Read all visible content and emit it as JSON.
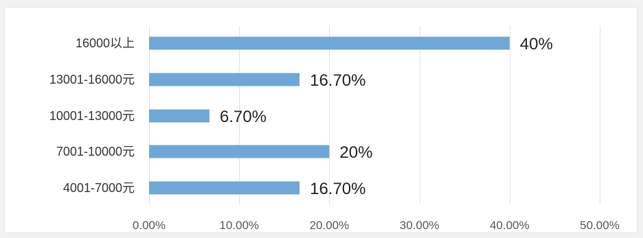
{
  "chart_data": {
    "type": "bar",
    "orientation": "horizontal",
    "categories": [
      "16000以上",
      "13001-16000元",
      "10001-13000元",
      "7001-10000元",
      "4001-7000元"
    ],
    "values": [
      40,
      16.7,
      6.7,
      20,
      16.7
    ],
    "data_labels": [
      "40%",
      "16.70%",
      "6.70%",
      "20%",
      "16.70%"
    ],
    "xlim": [
      0,
      50
    ],
    "x_ticks": [
      0,
      10,
      20,
      30,
      40,
      50
    ],
    "x_tick_labels": [
      "0.00%",
      "10.00%",
      "20.00%",
      "30.00%",
      "40.00%",
      "50.00%"
    ],
    "grid": true,
    "legend": false,
    "title": "",
    "xlabel": "",
    "ylabel": "",
    "colors": {
      "bar": "#6fa8d6",
      "grid": "#e3e3e3"
    }
  }
}
